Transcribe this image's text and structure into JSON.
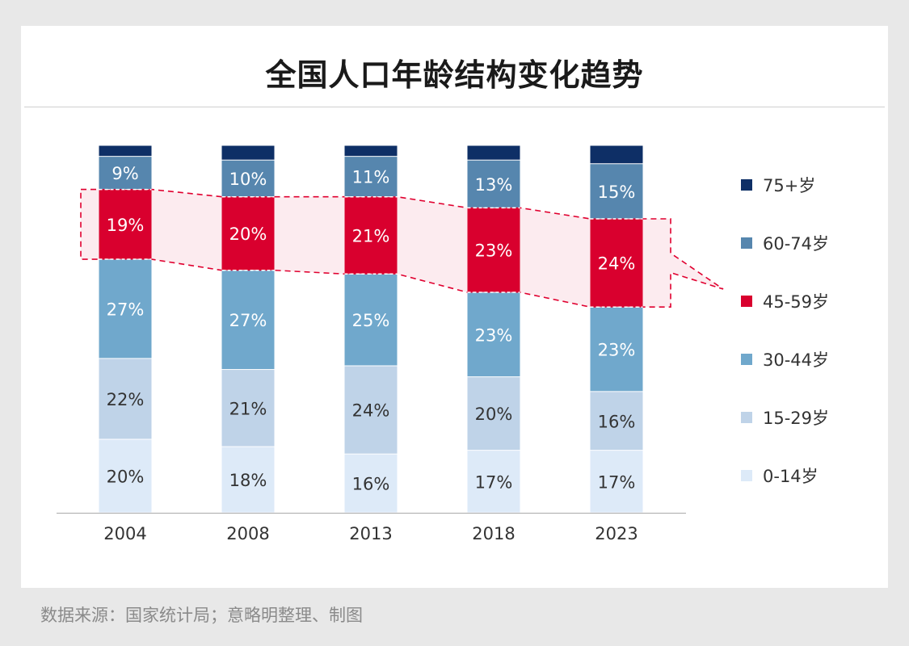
{
  "title": "全国人口年龄结构变化趋势",
  "source": "数据来源：国家统计局；意略明整理、制图",
  "chart_data": {
    "type": "bar",
    "stacked": true,
    "title": "全国人口年龄结构变化趋势",
    "xlabel": "",
    "ylabel": "",
    "ylim": [
      0,
      100
    ],
    "grid": false,
    "legend_position": "right",
    "categories": [
      "2004",
      "2008",
      "2013",
      "2018",
      "2023"
    ],
    "series": [
      {
        "name": "0-14岁",
        "color": "#ddeaf8",
        "label_color": "#333333",
        "values": [
          20,
          18,
          16,
          17,
          17
        ],
        "labels": [
          "20%",
          "18%",
          "16%",
          "17%",
          "17%"
        ]
      },
      {
        "name": "15-29岁",
        "color": "#bfd3e8",
        "label_color": "#333333",
        "values": [
          22,
          21,
          24,
          20,
          16
        ],
        "labels": [
          "22%",
          "21%",
          "24%",
          "20%",
          "16%"
        ]
      },
      {
        "name": "30-44岁",
        "color": "#70a8cc",
        "label_color": "#ffffff",
        "values": [
          27,
          27,
          25,
          23,
          23
        ],
        "labels": [
          "27%",
          "27%",
          "25%",
          "23%",
          "23%"
        ]
      },
      {
        "name": "45-59岁",
        "color": "#d9002e",
        "label_color": "#ffffff",
        "values": [
          19,
          20,
          21,
          23,
          24
        ],
        "labels": [
          "19%",
          "20%",
          "21%",
          "23%",
          "24%"
        ]
      },
      {
        "name": "60-74岁",
        "color": "#5686ae",
        "label_color": "#ffffff",
        "values": [
          9,
          10,
          11,
          13,
          15
        ],
        "labels": [
          "9%",
          "10%",
          "11%",
          "13%",
          "15%"
        ]
      },
      {
        "name": "75+岁",
        "color": "#0e2f66",
        "label_color": "#ffffff",
        "values": [
          3,
          4,
          3,
          4,
          5
        ],
        "labels": [
          "",
          "",
          "",
          "",
          ""
        ]
      }
    ],
    "highlight_series": "45-59岁",
    "highlight_color": "#e0002f"
  }
}
